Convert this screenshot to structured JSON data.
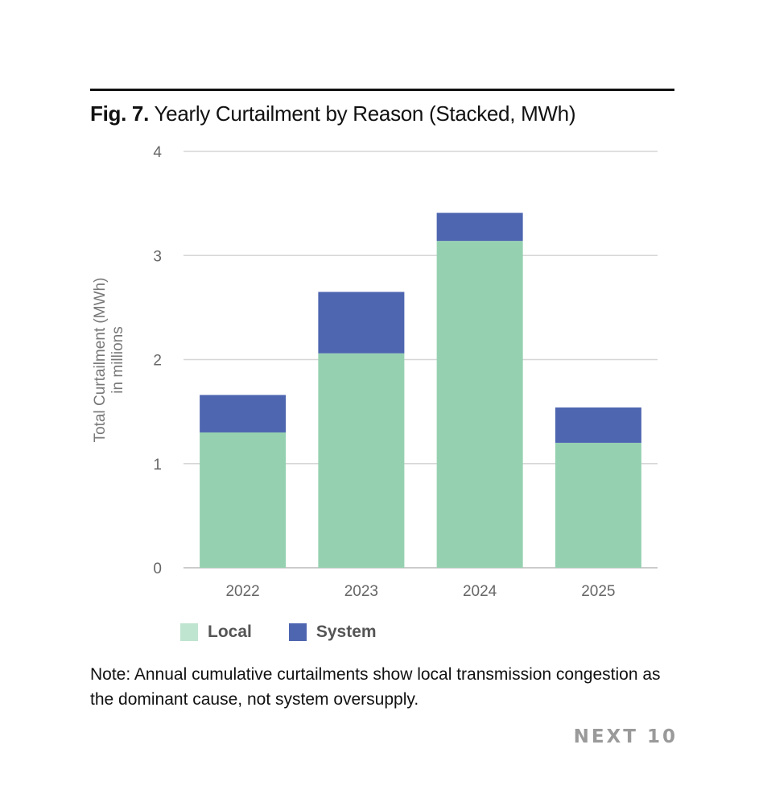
{
  "header": {
    "fig_label": "Fig. 7.",
    "title": "Yearly Curtailment by Reason (Stacked, MWh)"
  },
  "chart_data": {
    "type": "bar",
    "stacked": true,
    "title": "Yearly Curtailment by Reason (Stacked, MWh)",
    "xlabel": "",
    "ylabel": [
      "Total Curtailment (MWh)",
      "in millions"
    ],
    "ylim": [
      0,
      4
    ],
    "yticks": [
      "0",
      "1",
      "2",
      "3",
      "4"
    ],
    "categories": [
      "2022",
      "2023",
      "2024",
      "2025"
    ],
    "series": [
      {
        "name": "Local",
        "values": [
          1.3,
          2.06,
          3.14,
          1.2
        ],
        "color": "#95d1b0",
        "legend_color": "#bfe4d0"
      },
      {
        "name": "System",
        "values": [
          0.36,
          0.59,
          0.27,
          0.34
        ],
        "color": "#4e66b0"
      }
    ],
    "grid": true,
    "legend": "bottom-left"
  },
  "note": "Note: Annual cumulative curtailments show local transmission congestion as the dominant cause, not system oversupply.",
  "brand": "NEXT 10"
}
